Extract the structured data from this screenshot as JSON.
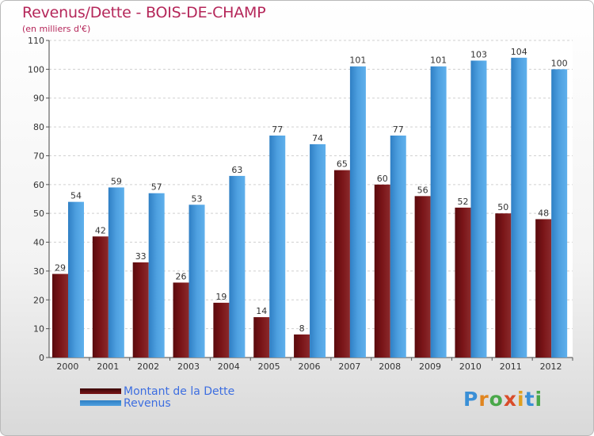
{
  "chart_data": {
    "type": "bar",
    "title": "Revenus/Dette - BOIS-DE-CHAMP",
    "subtitle": "(en milliers d'€)",
    "categories": [
      "2000",
      "2001",
      "2002",
      "2003",
      "2004",
      "2005",
      "2006",
      "2007",
      "2008",
      "2009",
      "2010",
      "2011",
      "2012"
    ],
    "series": [
      {
        "name": "Montant de la Dette",
        "color": "#7a1518",
        "values": [
          29,
          42,
          33,
          26,
          19,
          14,
          8,
          65,
          60,
          56,
          52,
          50,
          48
        ]
      },
      {
        "name": "Revenus",
        "color": "#4ea0e0",
        "values": [
          54,
          59,
          57,
          53,
          63,
          77,
          74,
          101,
          77,
          101,
          103,
          104,
          100
        ]
      }
    ],
    "ylim": [
      0,
      110
    ],
    "yticks": [
      0,
      10,
      20,
      30,
      40,
      50,
      60,
      70,
      80,
      90,
      100,
      110
    ],
    "grid": true,
    "legend_position": "bottom-left"
  },
  "logo": {
    "text": "Proxiti",
    "letters": [
      "P",
      "r",
      "o",
      "x",
      "i",
      "t",
      "i"
    ],
    "colors": [
      "#3a8fd6",
      "#e0851f",
      "#4aa84a",
      "#d94c2a",
      "#e0a01f",
      "#3a8fd6",
      "#4aa84a"
    ]
  }
}
